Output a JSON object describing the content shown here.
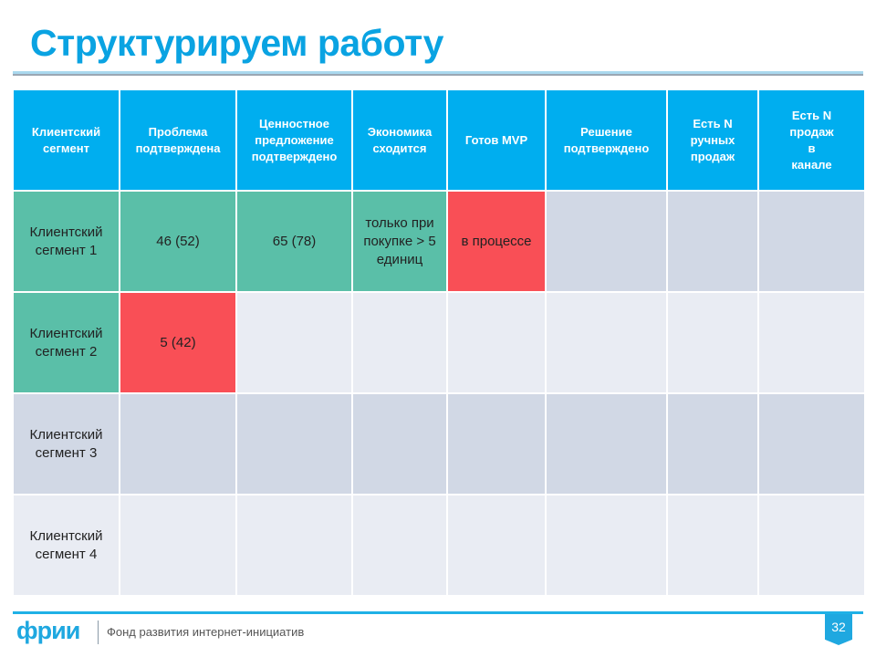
{
  "title": "Структурируем работу",
  "table": {
    "headers": [
      "Клиентский сегмент",
      "Проблема подтверждена",
      "Ценностное предложение подтверждено",
      "Экономика сходится",
      "Готов MVP",
      "Решение подтверждено",
      "Есть N ручных продаж",
      "Есть N продаж в канале"
    ],
    "rows": [
      {
        "segment": "Клиентский сегмент 1",
        "cells": [
          "46 (52)",
          "65 (78)",
          "только при покупке > 5 единиц",
          "в процессе",
          "",
          "",
          ""
        ]
      },
      {
        "segment": "Клиентский сегмент 2",
        "cells": [
          "5 (42)",
          "",
          "",
          "",
          "",
          "",
          ""
        ]
      },
      {
        "segment": "Клиентский сегмент 3",
        "cells": [
          "",
          "",
          "",
          "",
          "",
          "",
          ""
        ]
      },
      {
        "segment": "Клиентский сегмент 4",
        "cells": [
          "",
          "",
          "",
          "",
          "",
          "",
          ""
        ]
      }
    ]
  },
  "colors": {
    "accent": "#00aeef",
    "confirmed": "#5abfa8",
    "problem": "#f94f56"
  },
  "footer": {
    "logo": "фрии",
    "org": "Фонд развития интернет-инициатив",
    "page": "32"
  }
}
